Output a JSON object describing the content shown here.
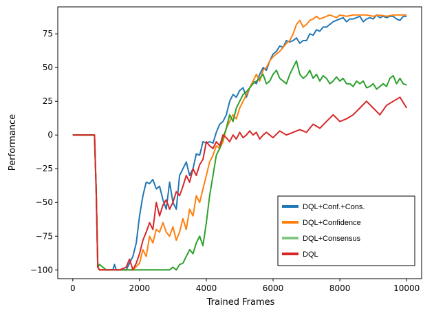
{
  "chart_data": {
    "type": "line",
    "title": "",
    "xlabel": "Trained Frames",
    "ylabel": "Performance",
    "xlim": [
      -450,
      10450
    ],
    "ylim": [
      -106.5,
      95
    ],
    "xticks": [
      "0",
      "2000",
      "4000",
      "6000",
      "8000",
      "10000"
    ],
    "yticks": [
      "−100",
      "−75",
      "−50",
      "−25",
      "0",
      "25",
      "50",
      "75"
    ],
    "grid": false,
    "legend_position": "lower-right",
    "series": [
      {
        "name": "DQL+Conf.+Cons.",
        "color": "#1f77b4",
        "x": [
          0,
          600,
          650,
          700,
          750,
          800,
          1000,
          1200,
          1250,
          1300,
          1400,
          1600,
          1800,
          1900,
          2000,
          2100,
          2200,
          2300,
          2400,
          2500,
          2600,
          2700,
          2800,
          2900,
          3000,
          3100,
          3200,
          3300,
          3400,
          3500,
          3600,
          3700,
          3800,
          3900,
          4000,
          4100,
          4200,
          4300,
          4400,
          4500,
          4600,
          4700,
          4800,
          4900,
          5000,
          5100,
          5200,
          5300,
          5400,
          5500,
          5600,
          5700,
          5800,
          5900,
          6000,
          6100,
          6200,
          6300,
          6400,
          6500,
          6600,
          6700,
          6800,
          6900,
          7000,
          7100,
          7200,
          7300,
          7400,
          7500,
          7600,
          7700,
          7800,
          7900,
          8000,
          8100,
          8200,
          8300,
          8400,
          8500,
          8600,
          8700,
          8800,
          8900,
          9000,
          9100,
          9200,
          9300,
          9400,
          9500,
          9600,
          9700,
          9800,
          9900,
          10000
        ],
        "y": [
          0,
          0,
          0,
          -40,
          -98,
          -100,
          -100,
          -100,
          -96,
          -100,
          -100,
          -100,
          -90,
          -80,
          -60,
          -45,
          -35,
          -36,
          -33,
          -40,
          -38,
          -48,
          -55,
          -35,
          -50,
          -55,
          -30,
          -25,
          -20,
          -30,
          -25,
          -14,
          -15,
          -5,
          -6,
          -5,
          -6,
          2,
          8,
          10,
          15,
          25,
          30,
          28,
          33,
          35,
          28,
          35,
          40,
          38,
          45,
          50,
          48,
          55,
          60,
          62,
          66,
          65,
          70,
          69,
          70,
          72,
          68,
          70,
          70,
          75,
          74,
          78,
          77,
          80,
          80,
          82,
          84,
          85,
          86,
          87,
          84,
          86,
          86,
          87,
          88,
          84,
          86,
          87,
          86,
          89,
          87,
          88,
          87,
          88,
          88,
          86,
          85,
          88,
          88
        ]
      },
      {
        "name": "DQL+Confidence",
        "color": "#ff7f0e",
        "x": [
          0,
          600,
          650,
          700,
          750,
          800,
          1000,
          1200,
          1400,
          1600,
          1800,
          2000,
          2100,
          2200,
          2300,
          2400,
          2500,
          2600,
          2700,
          2800,
          2900,
          3000,
          3100,
          3200,
          3300,
          3400,
          3500,
          3600,
          3700,
          3800,
          3900,
          4000,
          4100,
          4200,
          4300,
          4400,
          4500,
          4600,
          4700,
          4800,
          4900,
          5000,
          5100,
          5200,
          5300,
          5400,
          5500,
          5600,
          5700,
          5800,
          5900,
          6000,
          6100,
          6200,
          6300,
          6400,
          6500,
          6600,
          6700,
          6800,
          6900,
          7000,
          7100,
          7200,
          7300,
          7400,
          7500,
          7600,
          7700,
          7800,
          7900,
          8000,
          8200,
          8400,
          8600,
          8800,
          9000,
          9200,
          9400,
          9600,
          9800,
          10000
        ],
        "y": [
          0,
          0,
          0,
          -40,
          -98,
          -100,
          -100,
          -100,
          -100,
          -100,
          -100,
          -95,
          -85,
          -90,
          -75,
          -80,
          -70,
          -72,
          -65,
          -72,
          -75,
          -68,
          -78,
          -72,
          -62,
          -70,
          -55,
          -60,
          -45,
          -50,
          -40,
          -30,
          -20,
          -15,
          -8,
          -10,
          -5,
          5,
          10,
          15,
          12,
          20,
          25,
          30,
          35,
          40,
          45,
          40,
          48,
          50,
          55,
          58,
          60,
          62,
          65,
          68,
          70,
          75,
          82,
          85,
          80,
          82,
          85,
          86,
          88,
          86,
          87,
          88,
          89,
          88,
          87,
          89,
          88,
          89,
          89,
          89,
          88,
          89,
          88,
          89,
          89,
          89
        ]
      },
      {
        "name": "DQL+Consensus",
        "color": "#2ca02c",
        "x": [
          0,
          600,
          650,
          700,
          750,
          800,
          1000,
          1200,
          1400,
          1600,
          1800,
          2000,
          2200,
          2400,
          2600,
          2800,
          2900,
          3000,
          3100,
          3200,
          3300,
          3400,
          3500,
          3600,
          3700,
          3800,
          3900,
          4000,
          4100,
          4200,
          4300,
          4400,
          4500,
          4600,
          4700,
          4800,
          4900,
          5000,
          5100,
          5200,
          5300,
          5400,
          5500,
          5600,
          5700,
          5800,
          5900,
          6000,
          6100,
          6200,
          6300,
          6400,
          6500,
          6600,
          6700,
          6800,
          6900,
          7000,
          7100,
          7200,
          7300,
          7400,
          7500,
          7600,
          7700,
          7800,
          7900,
          8000,
          8100,
          8200,
          8300,
          8400,
          8500,
          8600,
          8700,
          8800,
          8900,
          9000,
          9100,
          9200,
          9300,
          9400,
          9500,
          9600,
          9700,
          9800,
          9900,
          10000
        ],
        "y": [
          0,
          0,
          0,
          -40,
          -98,
          -96,
          -100,
          -100,
          -100,
          -100,
          -100,
          -100,
          -100,
          -100,
          -100,
          -100,
          -100,
          -98,
          -100,
          -96,
          -95,
          -90,
          -85,
          -88,
          -80,
          -75,
          -82,
          -65,
          -45,
          -30,
          -15,
          -10,
          -2,
          5,
          15,
          10,
          20,
          25,
          30,
          32,
          35,
          38,
          40,
          42,
          45,
          38,
          40,
          45,
          48,
          42,
          40,
          38,
          45,
          50,
          55,
          45,
          42,
          44,
          48,
          42,
          45,
          40,
          44,
          42,
          38,
          40,
          43,
          40,
          42,
          38,
          38,
          36,
          40,
          38,
          40,
          35,
          36,
          38,
          34,
          36,
          38,
          36,
          42,
          44,
          38,
          42,
          38,
          37
        ]
      },
      {
        "name": "DQL",
        "color": "#d62728",
        "x": [
          0,
          600,
          650,
          700,
          750,
          800,
          1000,
          1200,
          1400,
          1600,
          1700,
          1800,
          1900,
          2000,
          2100,
          2200,
          2300,
          2400,
          2500,
          2600,
          2700,
          2800,
          2900,
          3000,
          3100,
          3200,
          3300,
          3400,
          3500,
          3600,
          3700,
          3800,
          3900,
          4000,
          4100,
          4200,
          4300,
          4400,
          4500,
          4600,
          4700,
          4800,
          4900,
          5000,
          5100,
          5200,
          5300,
          5400,
          5500,
          5600,
          5700,
          5800,
          5900,
          6000,
          6200,
          6400,
          6600,
          6800,
          7000,
          7200,
          7400,
          7600,
          7800,
          8000,
          8200,
          8400,
          8600,
          8800,
          9000,
          9200,
          9400,
          9600,
          9800,
          10000
        ],
        "y": [
          0,
          0,
          0,
          -40,
          -98,
          -100,
          -100,
          -100,
          -100,
          -98,
          -92,
          -100,
          -95,
          -88,
          -78,
          -72,
          -65,
          -70,
          -50,
          -60,
          -52,
          -48,
          -55,
          -50,
          -42,
          -45,
          -38,
          -30,
          -35,
          -25,
          -30,
          -22,
          -18,
          -5,
          -8,
          -10,
          -5,
          -8,
          0,
          -2,
          -5,
          0,
          -3,
          2,
          -2,
          0,
          3,
          0,
          2,
          -3,
          0,
          2,
          0,
          -2,
          3,
          0,
          2,
          4,
          2,
          8,
          5,
          10,
          15,
          10,
          12,
          15,
          20,
          25,
          20,
          15,
          22,
          25,
          28,
          20
        ]
      }
    ]
  }
}
